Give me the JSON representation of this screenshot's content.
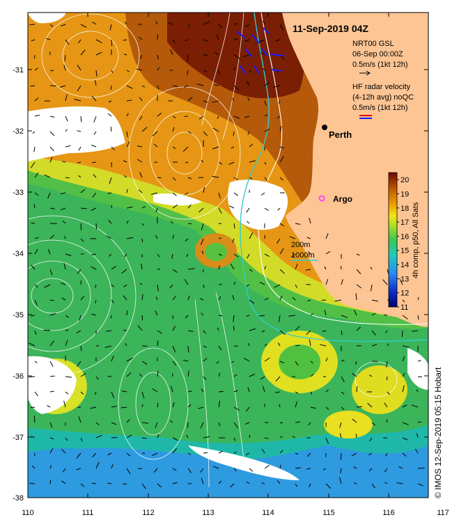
{
  "title": "11-Sep-2019 04Z",
  "gsl_legend": {
    "line1": "NRT00 GSL",
    "line2": "06-Sep 00:00Z",
    "line3": "0.5m/s (1kt 12h)"
  },
  "hf_legend": {
    "line1": "HF radar velocity",
    "line2": "(4-12h avg) noQC",
    "line3": "0.5m/s (1kt 12h)"
  },
  "places": {
    "perth": "Perth",
    "argo": "Argo"
  },
  "isobaths": {
    "shallow": "200m",
    "deep": "1000m"
  },
  "colorbar": {
    "label": "4h comp, p50, All Sats",
    "min": 11,
    "max": 20.5,
    "ticks": [
      "11",
      "12",
      "13",
      "14",
      "15",
      "16",
      "17",
      "18",
      "19",
      "20"
    ]
  },
  "axes": {
    "lon_ticks": [
      "110",
      "111",
      "112",
      "113",
      "114",
      "115",
      "116",
      "117"
    ],
    "lat_ticks": [
      "-31",
      "-32",
      "-33",
      "-34",
      "-35",
      "-36",
      "-37",
      "-38"
    ]
  },
  "credit": "© IMOS 12-Sep-2019 05:15 Hobart",
  "colors": {
    "land": "#fdc594",
    "accent_red": "#e8000b",
    "accent_blue": "#1a1aff",
    "isobath": "#33cccc",
    "argo": "#ff44ff"
  }
}
